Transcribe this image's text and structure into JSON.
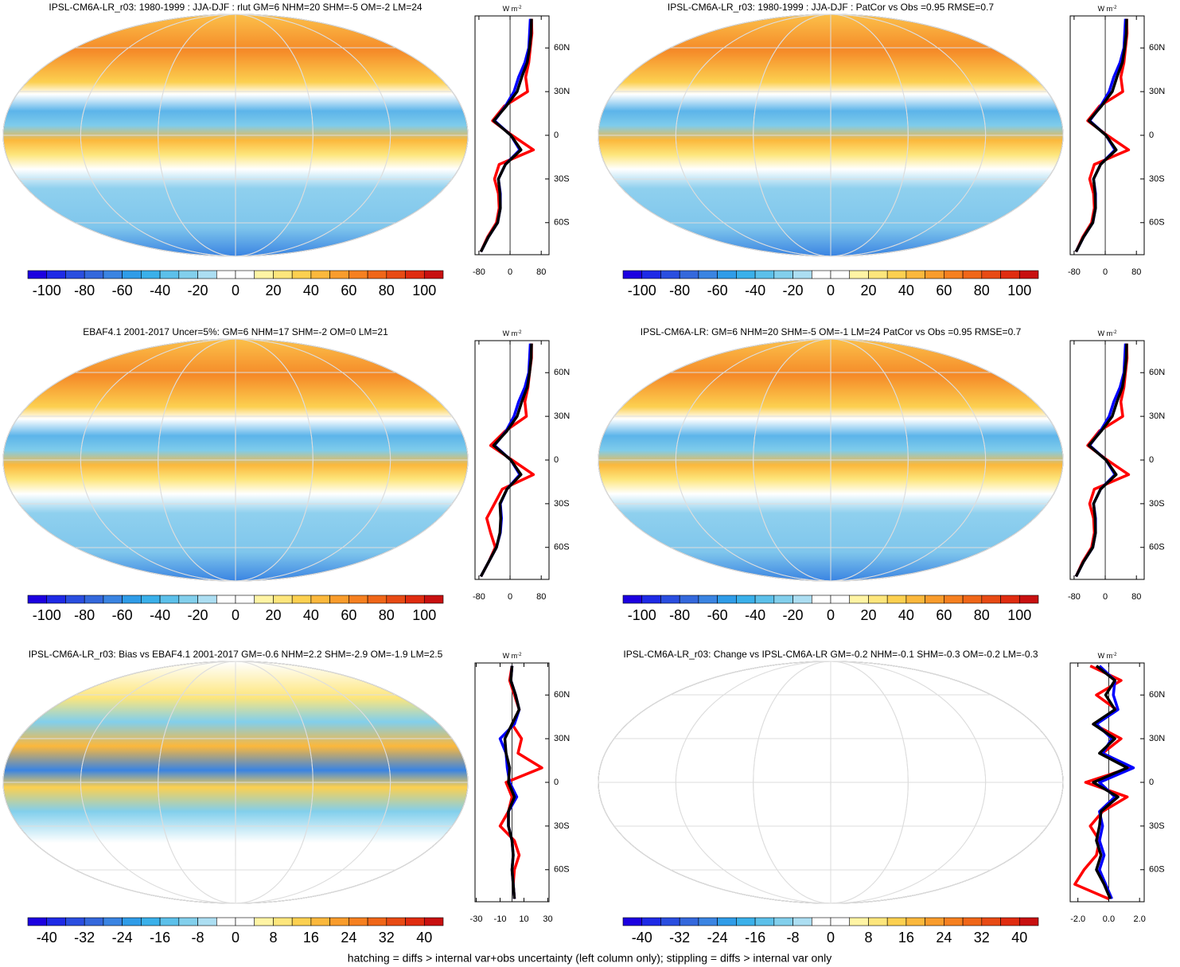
{
  "footer": "hatching = diffs > internal var+obs uncertainty (left column only); stippling = diffs > internal var only",
  "colormap": [
    "#1c00e0",
    "#1e2ae6",
    "#2a4ee0",
    "#3468dc",
    "#3a84e2",
    "#2f9ce8",
    "#3ab0ea",
    "#5cc0ea",
    "#82cfec",
    "#acdef2",
    "#ffffff",
    "#ffffff",
    "#fff4a4",
    "#fde67c",
    "#fcd050",
    "#fbb83c",
    "#f99c2c",
    "#f68020",
    "#f06618",
    "#e84a14",
    "#e02c10",
    "#c81010"
  ],
  "chart_data": [
    {
      "type": "line",
      "title": "IPSL-CM6A-LR_r03: 1980-1999 : JJA-DJF : rlut GM=6 NHM=20 SHM=-5 OM=-2 LM=24",
      "unit": "W m",
      "unit_sup": "-2",
      "cblim": [
        -110,
        110
      ],
      "cbticks": [
        -100,
        -80,
        -60,
        -40,
        -20,
        0,
        20,
        40,
        60,
        80,
        100
      ],
      "xlim": [
        -90,
        100
      ],
      "xticks": [
        -80,
        0,
        80
      ],
      "ylim": [
        -82,
        82
      ],
      "yticks": [
        {
          "value": 60,
          "label": "60N"
        },
        {
          "value": 30,
          "label": "30N"
        },
        0,
        {
          "value": -30,
          "label": "30S"
        },
        {
          "value": -60,
          "label": "60S"
        }
      ],
      "y": [
        -80,
        -70,
        -60,
        -50,
        -40,
        -30,
        -20,
        -10,
        0,
        10,
        20,
        30,
        40,
        50,
        60,
        70,
        80
      ],
      "series": [
        {
          "color": "#ff0000",
          "values": [
            -75,
            -58,
            -35,
            -28,
            -30,
            -40,
            -28,
            60,
            5,
            -45,
            -15,
            45,
            40,
            48,
            52,
            56,
            55
          ]
        },
        {
          "color": "#0000ff",
          "values": [
            -75,
            -56,
            -32,
            -25,
            -25,
            -30,
            -12,
            25,
            2,
            -40,
            -12,
            10,
            22,
            38,
            48,
            50,
            52
          ]
        },
        {
          "color": "#000000",
          "values": [
            -75,
            -56,
            -32,
            -25,
            -26,
            -30,
            -12,
            28,
            2,
            -42,
            -10,
            18,
            30,
            44,
            50,
            54,
            55
          ]
        }
      ]
    },
    {
      "type": "line",
      "title": "IPSL-CM6A-LR_r03: 1980-1999 : JJA-DJF : PatCor vs Obs =0.95 RMSE=0.7",
      "unit": "W m",
      "unit_sup": "-2",
      "cblim": [
        -110,
        110
      ],
      "cbticks": [
        -100,
        -80,
        -60,
        -40,
        -20,
        0,
        20,
        40,
        60,
        80,
        100
      ],
      "xlim": [
        -90,
        100
      ],
      "xticks": [
        -80,
        0,
        80
      ],
      "ylim": [
        -82,
        82
      ],
      "yticks": [
        {
          "value": 60,
          "label": "60N"
        },
        {
          "value": 30,
          "label": "30N"
        },
        0,
        {
          "value": -30,
          "label": "30S"
        },
        {
          "value": -60,
          "label": "60S"
        }
      ],
      "y": [
        -80,
        -70,
        -60,
        -50,
        -40,
        -30,
        -20,
        -10,
        0,
        10,
        20,
        30,
        40,
        50,
        60,
        70,
        80
      ],
      "series": [
        {
          "color": "#ff0000",
          "values": [
            -75,
            -58,
            -35,
            -28,
            -30,
            -40,
            -28,
            60,
            5,
            -45,
            -15,
            45,
            40,
            48,
            52,
            56,
            55
          ]
        },
        {
          "color": "#0000ff",
          "values": [
            -75,
            -56,
            -32,
            -25,
            -25,
            -30,
            -12,
            25,
            2,
            -40,
            -12,
            10,
            22,
            38,
            48,
            50,
            52
          ]
        },
        {
          "color": "#000000",
          "values": [
            -75,
            -56,
            -32,
            -25,
            -26,
            -30,
            -12,
            28,
            2,
            -42,
            -10,
            18,
            30,
            44,
            50,
            54,
            55
          ]
        }
      ]
    },
    {
      "type": "line",
      "title": "EBAF4.1 2001-2017 Uncer=5%: GM=6 NHM=17 SHM=-2 OM=0 LM=21",
      "unit": "W m",
      "unit_sup": "-2",
      "cblim": [
        -110,
        110
      ],
      "cbticks": [
        -100,
        -80,
        -60,
        -40,
        -20,
        0,
        20,
        40,
        60,
        80,
        100
      ],
      "xlim": [
        -90,
        100
      ],
      "xticks": [
        -80,
        0,
        80
      ],
      "ylim": [
        -82,
        82
      ],
      "yticks": [
        {
          "value": 60,
          "label": "60N"
        },
        {
          "value": 30,
          "label": "30N"
        },
        0,
        {
          "value": -30,
          "label": "30S"
        },
        {
          "value": -60,
          "label": "60S"
        }
      ],
      "y": [
        -80,
        -70,
        -60,
        -50,
        -40,
        -30,
        -20,
        -10,
        0,
        10,
        20,
        30,
        40,
        50,
        60,
        70,
        80
      ],
      "series": [
        {
          "color": "#ff0000",
          "values": [
            -75,
            -55,
            -38,
            -50,
            -60,
            -40,
            -20,
            60,
            5,
            -50,
            -12,
            42,
            38,
            46,
            50,
            55,
            55
          ]
        },
        {
          "color": "#0000ff",
          "values": [
            -75,
            -55,
            -35,
            -25,
            -22,
            -25,
            -8,
            25,
            2,
            -40,
            -10,
            10,
            22,
            38,
            48,
            50,
            52
          ]
        },
        {
          "color": "#000000",
          "values": [
            -75,
            -55,
            -35,
            -26,
            -24,
            -26,
            -8,
            28,
            2,
            -42,
            -8,
            18,
            30,
            44,
            50,
            54,
            55
          ]
        }
      ]
    },
    {
      "type": "line",
      "title": "IPSL-CM6A-LR: GM=6 NHM=20 SHM=-5 OM=-1 LM=24 PatCor vs Obs =0.95 RMSE=0.7",
      "unit": "W m",
      "unit_sup": "-2",
      "cblim": [
        -110,
        110
      ],
      "cbticks": [
        -100,
        -80,
        -60,
        -40,
        -20,
        0,
        20,
        40,
        60,
        80,
        100
      ],
      "xlim": [
        -90,
        100
      ],
      "xticks": [
        -80,
        0,
        80
      ],
      "ylim": [
        -82,
        82
      ],
      "yticks": [
        {
          "value": 60,
          "label": "60N"
        },
        {
          "value": 30,
          "label": "30N"
        },
        0,
        {
          "value": -30,
          "label": "30S"
        },
        {
          "value": -60,
          "label": "60S"
        }
      ],
      "y": [
        -80,
        -70,
        -60,
        -50,
        -40,
        -30,
        -20,
        -10,
        0,
        10,
        20,
        30,
        40,
        50,
        60,
        70,
        80
      ],
      "series": [
        {
          "color": "#ff0000",
          "values": [
            -75,
            -58,
            -35,
            -28,
            -30,
            -40,
            -28,
            60,
            5,
            -45,
            -15,
            45,
            40,
            48,
            52,
            56,
            55
          ]
        },
        {
          "color": "#0000ff",
          "values": [
            -75,
            -56,
            -32,
            -25,
            -25,
            -30,
            -12,
            25,
            2,
            -40,
            -12,
            10,
            22,
            38,
            48,
            50,
            52
          ]
        },
        {
          "color": "#000000",
          "values": [
            -75,
            -56,
            -32,
            -25,
            -26,
            -30,
            -12,
            28,
            2,
            -42,
            -10,
            18,
            30,
            44,
            50,
            54,
            55
          ]
        }
      ]
    },
    {
      "type": "line",
      "title": "IPSL-CM6A-LR_r03: Bias vs EBAF4.1 2001-2017 GM=-0.6 NHM=2.2 SHM=-2.9 OM=-1.9 LM=2.5",
      "unit": "W m",
      "unit_sup": "-2",
      "cblim": [
        -44,
        44
      ],
      "cbticks": [
        -40,
        -32,
        -24,
        -16,
        -8,
        0,
        8,
        16,
        24,
        32,
        40
      ],
      "xlim": [
        -31,
        31
      ],
      "xticks": [
        -30,
        -10,
        10,
        30
      ],
      "ylim": [
        -82,
        82
      ],
      "yticks": [
        {
          "value": 60,
          "label": "60N"
        },
        {
          "value": 30,
          "label": "30N"
        },
        0,
        {
          "value": -30,
          "label": "30S"
        },
        {
          "value": -60,
          "label": "60S"
        }
      ],
      "y": [
        -80,
        -70,
        -60,
        -50,
        -40,
        -30,
        -20,
        -10,
        0,
        10,
        20,
        30,
        40,
        50,
        60,
        70,
        80
      ],
      "series": [
        {
          "color": "#ff0000",
          "values": [
            2,
            1,
            2,
            6,
            2,
            -10,
            -3,
            0,
            -5,
            25,
            5,
            8,
            0,
            6,
            2,
            -2,
            0
          ]
        },
        {
          "color": "#0000ff",
          "values": [
            2,
            1,
            0,
            1,
            0,
            -3,
            -3,
            4,
            -2,
            -4,
            -5,
            -10,
            2,
            6,
            3,
            -1,
            0
          ]
        },
        {
          "color": "#000000",
          "values": [
            2,
            1,
            0,
            1,
            0,
            -3,
            -3,
            2,
            -3,
            -2,
            -5,
            -6,
            0,
            6,
            3,
            -1,
            0
          ]
        }
      ]
    },
    {
      "type": "line",
      "title": "IPSL-CM6A-LR_r03: Change vs IPSL-CM6A-LR GM=-0.2 NHM=-0.1 SHM=-0.3 OM=-0.2 LM=-0.3",
      "unit": "W m",
      "unit_sup": "-2",
      "cblim": [
        -44,
        44
      ],
      "cbticks": [
        -40,
        -32,
        -24,
        -16,
        -8,
        0,
        8,
        16,
        24,
        32,
        40
      ],
      "xlim": [
        -2.5,
        2.3
      ],
      "xticks": [
        {
          "value": -2,
          "label": "-2.0"
        },
        {
          "value": 0,
          "label": "0.0"
        },
        {
          "value": 2,
          "label": "2.0"
        }
      ],
      "ylim": [
        -82,
        82
      ],
      "yticks": [
        {
          "value": 60,
          "label": "60N"
        },
        {
          "value": 30,
          "label": "30N"
        },
        0,
        {
          "value": -30,
          "label": "30S"
        },
        {
          "value": -60,
          "label": "60S"
        }
      ],
      "y": [
        -80,
        -70,
        -60,
        -50,
        -40,
        -30,
        -20,
        -10,
        0,
        10,
        20,
        30,
        40,
        50,
        60,
        70,
        80
      ],
      "series": [
        {
          "color": "#ff0000",
          "values": [
            0,
            -2.2,
            -1.6,
            -0.8,
            -0.6,
            -1.2,
            -0.4,
            1.2,
            -1.5,
            1.4,
            -0.4,
            0.8,
            -1.0,
            0.5,
            -0.8,
            0.8,
            -1.2
          ]
        },
        {
          "color": "#0000ff",
          "values": [
            0.2,
            -0.2,
            -0.6,
            -0.3,
            -0.6,
            -0.4,
            -0.6,
            0.4,
            -0.6,
            1.6,
            -0.4,
            0.2,
            -0.8,
            0.6,
            0.3,
            0.4,
            -0.6
          ]
        },
        {
          "color": "#000000",
          "values": [
            0.1,
            -0.3,
            -0.8,
            -0.5,
            -0.8,
            -0.6,
            -0.5,
            0.6,
            -1.0,
            1.2,
            -0.6,
            0.4,
            -1.0,
            0.4,
            -0.2,
            0.4,
            -0.8
          ]
        }
      ]
    }
  ]
}
